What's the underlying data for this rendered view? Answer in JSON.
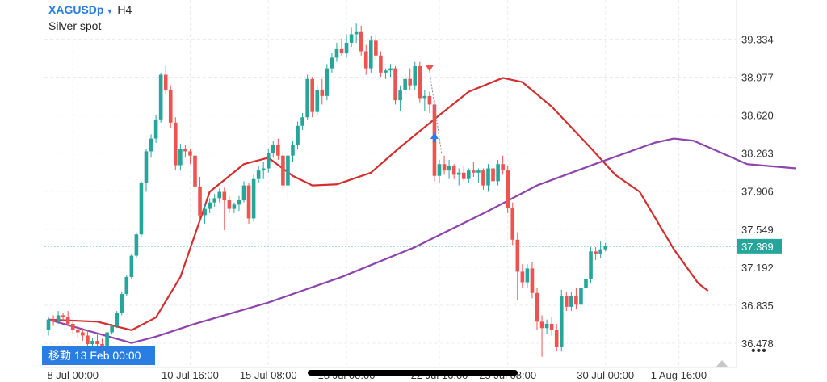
{
  "header": {
    "symbol": "XAGUSDp",
    "timeframe": "H4",
    "subtitle": "Silver spot"
  },
  "goto_label": "移動 13 Feb 00:00",
  "more_label": "•••",
  "last_price": "37.389",
  "colors": {
    "up": "#26a69a",
    "down": "#ef5350",
    "ma_fast": "#d32f2f",
    "ma_slow": "#8e44ad",
    "accent": "#2a7de1"
  },
  "chart_data": {
    "type": "candlestick",
    "ylim": [
      36.25,
      39.55
    ],
    "y_ticks": [
      "39.334",
      "38.977",
      "38.620",
      "38.263",
      "37.906",
      "37.549",
      "37.192",
      "36.835",
      "36.478"
    ],
    "x_ticks": [
      "8 Jul 00:00",
      "10 Jul 16:00",
      "15 Jul 08:00",
      "18 Jul 00:00",
      "22 Jul 16:00",
      "25 Jul 08:00",
      "30 Jul 00:00",
      "1 Aug 16:00"
    ],
    "last_price": 37.389,
    "candles": [
      [
        36.6,
        36.72,
        36.55,
        36.7
      ],
      [
        36.7,
        36.74,
        36.64,
        36.68
      ],
      [
        36.68,
        36.78,
        36.66,
        36.74
      ],
      [
        36.74,
        36.76,
        36.68,
        36.72
      ],
      [
        36.72,
        36.78,
        36.64,
        36.66
      ],
      [
        36.66,
        36.7,
        36.56,
        36.6
      ],
      [
        36.6,
        36.64,
        36.52,
        36.58
      ],
      [
        36.58,
        36.62,
        36.5,
        36.55
      ],
      [
        36.55,
        36.6,
        36.44,
        36.47
      ],
      [
        36.47,
        36.53,
        36.43,
        36.5
      ],
      [
        36.5,
        36.56,
        36.45,
        36.47
      ],
      [
        36.47,
        36.52,
        36.42,
        36.45
      ],
      [
        36.45,
        36.6,
        36.43,
        36.58
      ],
      [
        36.58,
        36.66,
        36.56,
        36.64
      ],
      [
        36.64,
        36.78,
        36.62,
        36.76
      ],
      [
        36.76,
        36.96,
        36.74,
        36.94
      ],
      [
        36.94,
        37.12,
        36.92,
        37.1
      ],
      [
        37.1,
        37.32,
        37.08,
        37.3
      ],
      [
        37.3,
        37.52,
        37.28,
        37.5
      ],
      [
        37.5,
        38.0,
        37.48,
        37.98
      ],
      [
        37.98,
        38.3,
        37.9,
        38.28
      ],
      [
        38.28,
        38.44,
        38.22,
        38.4
      ],
      [
        38.4,
        38.62,
        38.36,
        38.58
      ],
      [
        38.58,
        39.02,
        38.55,
        39.0
      ],
      [
        39.0,
        39.08,
        38.82,
        38.86
      ],
      [
        38.86,
        38.9,
        38.5,
        38.55
      ],
      [
        38.55,
        38.6,
        38.1,
        38.15
      ],
      [
        38.15,
        38.35,
        38.1,
        38.3
      ],
      [
        38.3,
        38.34,
        38.22,
        38.28
      ],
      [
        38.28,
        38.3,
        38.16,
        38.24
      ],
      [
        38.24,
        38.3,
        37.9,
        37.95
      ],
      [
        37.95,
        38.04,
        37.63,
        37.68
      ],
      [
        37.68,
        37.78,
        37.6,
        37.74
      ],
      [
        37.74,
        37.84,
        37.7,
        37.8
      ],
      [
        37.8,
        37.88,
        37.76,
        37.84
      ],
      [
        37.84,
        37.93,
        37.8,
        37.9
      ],
      [
        37.9,
        37.94,
        37.54,
        37.82
      ],
      [
        37.82,
        37.86,
        37.7,
        37.74
      ],
      [
        37.74,
        37.8,
        37.7,
        37.78
      ],
      [
        37.78,
        37.86,
        37.72,
        37.82
      ],
      [
        37.82,
        38.0,
        37.8,
        37.96
      ],
      [
        37.96,
        37.98,
        37.6,
        37.65
      ],
      [
        37.65,
        38.06,
        37.62,
        38.02
      ],
      [
        38.02,
        38.14,
        37.98,
        38.1
      ],
      [
        38.1,
        38.18,
        38.02,
        38.12
      ],
      [
        38.12,
        38.3,
        38.08,
        38.26
      ],
      [
        38.26,
        38.38,
        38.22,
        38.34
      ],
      [
        38.34,
        38.4,
        38.2,
        38.24
      ],
      [
        38.24,
        38.3,
        37.9,
        37.96
      ],
      [
        37.96,
        38.28,
        37.84,
        38.24
      ],
      [
        38.24,
        38.38,
        38.18,
        38.34
      ],
      [
        38.34,
        38.56,
        38.3,
        38.52
      ],
      [
        38.52,
        38.64,
        38.48,
        38.6
      ],
      [
        38.6,
        39.0,
        38.58,
        38.96
      ],
      [
        38.96,
        38.98,
        38.6,
        38.65
      ],
      [
        38.65,
        38.9,
        38.62,
        38.86
      ],
      [
        38.86,
        38.96,
        38.72,
        38.8
      ],
      [
        38.8,
        39.1,
        38.76,
        39.06
      ],
      [
        39.06,
        39.2,
        39.02,
        39.16
      ],
      [
        39.16,
        39.3,
        39.12,
        39.24
      ],
      [
        39.24,
        39.34,
        39.18,
        39.2
      ],
      [
        39.2,
        39.38,
        39.16,
        39.3
      ],
      [
        39.3,
        39.44,
        39.26,
        39.38
      ],
      [
        39.38,
        39.48,
        39.3,
        39.4
      ],
      [
        39.4,
        39.46,
        39.18,
        39.22
      ],
      [
        39.22,
        39.28,
        39.0,
        39.06
      ],
      [
        39.06,
        39.36,
        39.02,
        39.32
      ],
      [
        39.32,
        39.38,
        39.14,
        39.18
      ],
      [
        39.18,
        39.22,
        38.98,
        39.02
      ],
      [
        39.02,
        39.06,
        38.96,
        39.04
      ],
      [
        39.04,
        39.1,
        38.98,
        39.06
      ],
      [
        39.06,
        39.08,
        38.72,
        38.76
      ],
      [
        38.76,
        38.9,
        38.66,
        38.86
      ],
      [
        38.86,
        39.0,
        38.82,
        38.96
      ],
      [
        38.96,
        39.06,
        38.86,
        38.9
      ],
      [
        38.9,
        39.12,
        38.86,
        39.08
      ],
      [
        39.08,
        39.12,
        38.74,
        38.78
      ],
      [
        38.78,
        38.86,
        38.66,
        38.8
      ],
      [
        38.8,
        38.84,
        38.64,
        38.72
      ],
      [
        38.72,
        38.76,
        38.0,
        38.05
      ],
      [
        38.05,
        38.2,
        37.98,
        38.16
      ],
      [
        38.16,
        38.24,
        38.06,
        38.1
      ],
      [
        38.1,
        38.2,
        38.02,
        38.14
      ],
      [
        38.14,
        38.16,
        38.02,
        38.06
      ],
      [
        38.06,
        38.12,
        37.96,
        38.08
      ],
      [
        38.08,
        38.14,
        38.0,
        38.02
      ],
      [
        38.02,
        38.12,
        37.98,
        38.1
      ],
      [
        38.1,
        38.18,
        38.04,
        38.08
      ],
      [
        38.08,
        38.12,
        37.98,
        38.1
      ],
      [
        38.1,
        38.12,
        37.92,
        37.96
      ],
      [
        37.96,
        38.16,
        37.9,
        38.12
      ],
      [
        38.12,
        38.14,
        37.98,
        38.0
      ],
      [
        38.0,
        38.2,
        37.96,
        38.16
      ],
      [
        38.16,
        38.24,
        38.06,
        38.1
      ],
      [
        38.1,
        38.14,
        37.7,
        37.75
      ],
      [
        37.75,
        37.8,
        37.4,
        37.45
      ],
      [
        37.45,
        37.52,
        36.88,
        37.15
      ],
      [
        37.15,
        37.22,
        37.0,
        37.05
      ],
      [
        37.05,
        37.22,
        37.0,
        37.18
      ],
      [
        37.18,
        37.24,
        36.9,
        36.95
      ],
      [
        36.95,
        37.0,
        36.6,
        36.68
      ],
      [
        36.68,
        36.74,
        36.35,
        36.62
      ],
      [
        36.62,
        36.7,
        36.56,
        36.66
      ],
      [
        36.66,
        36.72,
        36.55,
        36.6
      ],
      [
        36.6,
        36.66,
        36.4,
        36.44
      ],
      [
        36.44,
        36.98,
        36.4,
        36.92
      ],
      [
        36.92,
        36.96,
        36.78,
        36.82
      ],
      [
        36.82,
        36.96,
        36.78,
        36.92
      ],
      [
        36.92,
        37.0,
        36.8,
        36.84
      ],
      [
        36.84,
        37.04,
        36.8,
        37.0
      ],
      [
        37.0,
        37.12,
        36.96,
        37.08
      ],
      [
        37.08,
        37.38,
        37.04,
        37.34
      ],
      [
        37.34,
        37.38,
        37.26,
        37.32
      ],
      [
        37.32,
        37.44,
        37.28,
        37.36
      ],
      [
        37.36,
        37.42,
        37.34,
        37.389
      ]
    ],
    "series": [
      {
        "name": "",
        "color": "#d32f2f",
        "values": [
          [
            0,
            36.7
          ],
          [
            10,
            36.68
          ],
          [
            17,
            36.6
          ],
          [
            22,
            36.72
          ],
          [
            27,
            37.1
          ],
          [
            33,
            37.9
          ],
          [
            40,
            38.16
          ],
          [
            45,
            38.22
          ],
          [
            50,
            38.05
          ],
          [
            54,
            37.96
          ],
          [
            59,
            37.97
          ],
          [
            66,
            38.08
          ],
          [
            72,
            38.32
          ],
          [
            80,
            38.62
          ],
          [
            86,
            38.84
          ],
          [
            93,
            38.97
          ],
          [
            97,
            38.93
          ],
          [
            103,
            38.7
          ],
          [
            110,
            38.36
          ],
          [
            116,
            38.06
          ],
          [
            121,
            37.9
          ],
          [
            128,
            37.36
          ],
          [
            133,
            37.04
          ],
          [
            135,
            36.97
          ]
        ]
      },
      {
        "name": "",
        "color": "#8e44ad",
        "values": [
          [
            0,
            36.7
          ],
          [
            17,
            36.48
          ],
          [
            22,
            36.54
          ],
          [
            30,
            36.66
          ],
          [
            45,
            36.86
          ],
          [
            60,
            37.1
          ],
          [
            75,
            37.38
          ],
          [
            90,
            37.72
          ],
          [
            100,
            37.96
          ],
          [
            113,
            38.18
          ],
          [
            124,
            38.36
          ],
          [
            128,
            38.4
          ],
          [
            132,
            38.38
          ],
          [
            137,
            38.28
          ],
          [
            143,
            38.16
          ],
          [
            148,
            38.14
          ],
          [
            153,
            38.12
          ]
        ]
      }
    ]
  }
}
